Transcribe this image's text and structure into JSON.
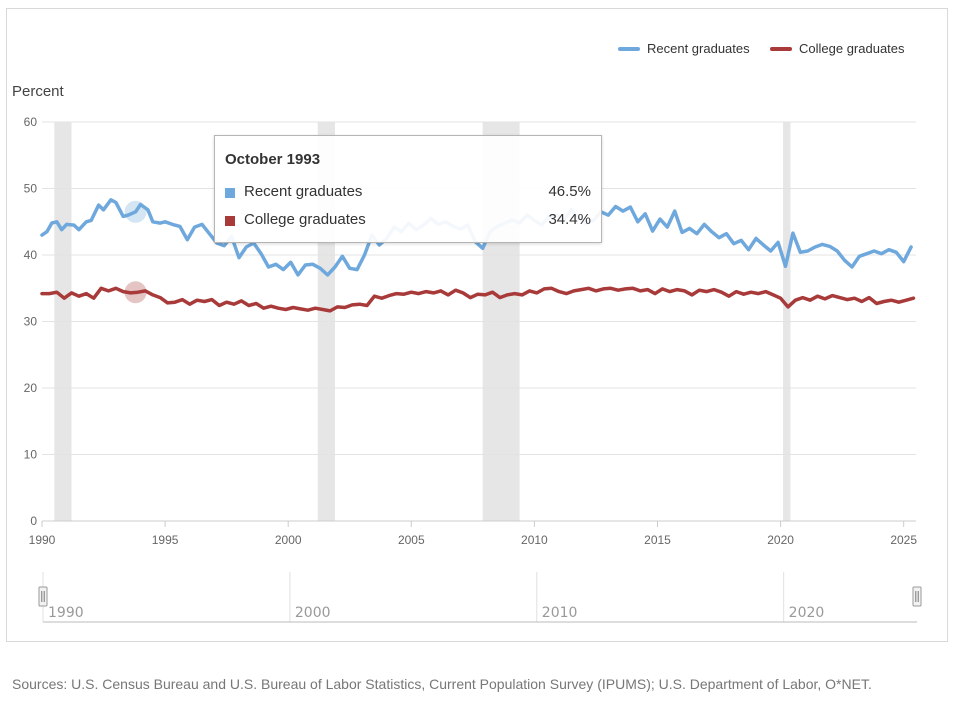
{
  "legend": [
    {
      "name": "Recent graduates",
      "color": "#6fa8dc"
    },
    {
      "name": "College graduates",
      "color": "#a83a3a"
    }
  ],
  "tooltip": {
    "title": "October 1993",
    "rows": [
      {
        "name": "Recent graduates",
        "value": "46.5%",
        "color": "#6fa8dc"
      },
      {
        "name": "College graduates",
        "value": "34.4%",
        "color": "#a83a3a"
      }
    ]
  },
  "navigator": {
    "labels": [
      "1990",
      "2000",
      "2010",
      "2020"
    ],
    "range": [
      1990,
      2025.4
    ]
  },
  "source": "Sources: U.S. Census Bureau and U.S. Bureau of Labor Statistics, Current Population Survey (IPUMS); U.S. Department of Labor, O*NET.",
  "chart_data": {
    "type": "line",
    "title": "",
    "ylabel": "Percent",
    "xlabel": "",
    "xlim": [
      1990,
      2025.5
    ],
    "ylim": [
      0,
      60
    ],
    "x_ticks": [
      "1990",
      "1995",
      "2000",
      "2005",
      "2010",
      "2015",
      "2020",
      "2025"
    ],
    "y_ticks": [
      "0",
      "10",
      "20",
      "30",
      "40",
      "50",
      "60"
    ],
    "grid": "horizontal",
    "legend_position": "top-right",
    "recessions": [
      [
        1990.5,
        1991.2
      ],
      [
        2001.2,
        2001.9
      ],
      [
        2007.9,
        2009.4
      ],
      [
        2020.1,
        2020.4
      ]
    ],
    "highlight_x": 1993.8,
    "series": [
      {
        "name": "Recent graduates",
        "color": "#6fa8dc",
        "x": [
          1990.0,
          1990.2,
          1990.4,
          1990.6,
          1990.8,
          1991.0,
          1991.3,
          1991.5,
          1991.8,
          1992.0,
          1992.3,
          1992.5,
          1992.8,
          1993.0,
          1993.3,
          1993.5,
          1993.8,
          1994.0,
          1994.3,
          1994.5,
          1994.8,
          1995.0,
          1995.3,
          1995.6,
          1995.9,
          1996.2,
          1996.5,
          1996.8,
          1997.1,
          1997.4,
          1997.7,
          1998.0,
          1998.3,
          1998.6,
          1998.9,
          1999.2,
          1999.5,
          1999.8,
          2000.1,
          2000.4,
          2000.7,
          2001.0,
          2001.3,
          2001.6,
          2001.9,
          2002.2,
          2002.5,
          2002.8,
          2003.1,
          2003.4,
          2003.7,
          2004.0,
          2004.3,
          2004.6,
          2004.9,
          2005.2,
          2005.5,
          2005.8,
          2006.1,
          2006.4,
          2006.7,
          2007.0,
          2007.3,
          2007.6,
          2007.9,
          2008.2,
          2008.5,
          2008.8,
          2009.1,
          2009.4,
          2009.7,
          2010.0,
          2010.3,
          2010.6,
          2010.9,
          2011.2,
          2011.5,
          2011.8,
          2012.1,
          2012.4,
          2012.7,
          2013.0,
          2013.3,
          2013.6,
          2013.9,
          2014.2,
          2014.5,
          2014.8,
          2015.1,
          2015.4,
          2015.7,
          2016.0,
          2016.3,
          2016.6,
          2016.9,
          2017.2,
          2017.5,
          2017.8,
          2018.1,
          2018.4,
          2018.7,
          2019.0,
          2019.3,
          2019.6,
          2019.9,
          2020.2,
          2020.5,
          2020.8,
          2021.1,
          2021.4,
          2021.7,
          2022.0,
          2022.3,
          2022.6,
          2022.9,
          2023.2,
          2023.5,
          2023.8,
          2024.1,
          2024.4,
          2024.7,
          2025.0,
          2025.3
        ],
        "values": [
          43.0,
          43.5,
          44.8,
          45.0,
          43.8,
          44.6,
          44.5,
          43.8,
          45.0,
          45.2,
          47.5,
          46.8,
          48.3,
          47.9,
          45.8,
          46.0,
          46.5,
          47.6,
          46.8,
          45.0,
          44.8,
          45.0,
          44.6,
          44.3,
          42.3,
          44.2,
          44.6,
          43.2,
          41.8,
          41.4,
          42.8,
          39.6,
          41.2,
          41.8,
          40.2,
          38.2,
          38.6,
          37.8,
          38.9,
          37.0,
          38.5,
          38.6,
          38.0,
          37.0,
          38.2,
          39.8,
          38.0,
          37.8,
          40.0,
          43.0,
          41.5,
          42.5,
          44.2,
          43.5,
          44.8,
          43.8,
          44.5,
          45.5,
          44.6,
          45.0,
          44.3,
          43.9,
          44.5,
          42.0,
          41.0,
          43.5,
          44.3,
          44.8,
          45.3,
          44.8,
          46.0,
          45.2,
          44.5,
          45.8,
          46.0,
          45.2,
          46.8,
          45.5,
          44.8,
          45.2,
          46.5,
          46.0,
          47.3,
          46.6,
          47.2,
          45.0,
          46.2,
          43.6,
          45.4,
          44.2,
          46.6,
          43.4,
          44.0,
          43.2,
          44.6,
          43.5,
          42.6,
          43.2,
          41.7,
          42.2,
          40.8,
          42.5,
          41.5,
          40.6,
          41.9,
          38.3,
          43.3,
          40.4,
          40.6,
          41.2,
          41.6,
          41.3,
          40.6,
          39.2,
          38.2,
          39.8,
          40.2,
          40.6,
          40.2,
          40.8,
          40.4,
          39.0,
          41.2
        ]
      },
      {
        "name": "College graduates",
        "color": "#a83a3a",
        "x": [
          1990.0,
          1990.3,
          1990.6,
          1990.9,
          1991.2,
          1991.5,
          1991.8,
          1992.1,
          1992.4,
          1992.7,
          1993.0,
          1993.3,
          1993.6,
          1993.9,
          1994.2,
          1994.5,
          1994.8,
          1995.1,
          1995.4,
          1995.7,
          1996.0,
          1996.3,
          1996.6,
          1996.9,
          1997.2,
          1997.5,
          1997.8,
          1998.1,
          1998.4,
          1998.7,
          1999.0,
          1999.3,
          1999.6,
          1999.9,
          2000.2,
          2000.5,
          2000.8,
          2001.1,
          2001.4,
          2001.7,
          2002.0,
          2002.3,
          2002.6,
          2002.9,
          2003.2,
          2003.5,
          2003.8,
          2004.1,
          2004.4,
          2004.7,
          2005.0,
          2005.3,
          2005.6,
          2005.9,
          2006.2,
          2006.5,
          2006.8,
          2007.1,
          2007.4,
          2007.7,
          2008.0,
          2008.3,
          2008.6,
          2008.9,
          2009.2,
          2009.5,
          2009.8,
          2010.1,
          2010.4,
          2010.7,
          2011.0,
          2011.3,
          2011.6,
          2011.9,
          2012.2,
          2012.5,
          2012.8,
          2013.1,
          2013.4,
          2013.7,
          2014.0,
          2014.3,
          2014.6,
          2014.9,
          2015.2,
          2015.5,
          2015.8,
          2016.1,
          2016.4,
          2016.7,
          2017.0,
          2017.3,
          2017.6,
          2017.9,
          2018.2,
          2018.5,
          2018.8,
          2019.1,
          2019.4,
          2019.7,
          2020.0,
          2020.3,
          2020.6,
          2020.9,
          2021.2,
          2021.5,
          2021.8,
          2022.1,
          2022.4,
          2022.7,
          2023.0,
          2023.3,
          2023.6,
          2023.9,
          2024.2,
          2024.5,
          2024.8,
          2025.1,
          2025.4
        ],
        "values": [
          34.2,
          34.2,
          34.4,
          33.5,
          34.3,
          33.8,
          34.2,
          33.5,
          35.0,
          34.6,
          35.0,
          34.5,
          34.3,
          34.4,
          34.6,
          34.0,
          33.6,
          32.8,
          32.9,
          33.3,
          32.6,
          33.2,
          33.0,
          33.3,
          32.4,
          32.9,
          32.6,
          33.1,
          32.4,
          32.7,
          32.0,
          32.3,
          32.0,
          31.8,
          32.1,
          31.9,
          31.7,
          32.0,
          31.8,
          31.6,
          32.2,
          32.1,
          32.5,
          32.6,
          32.4,
          33.8,
          33.5,
          33.9,
          34.2,
          34.1,
          34.4,
          34.2,
          34.5,
          34.3,
          34.6,
          34.0,
          34.7,
          34.3,
          33.6,
          34.1,
          34.0,
          34.4,
          33.6,
          34.0,
          34.2,
          34.0,
          34.6,
          34.3,
          34.9,
          35.0,
          34.5,
          34.2,
          34.6,
          34.8,
          35.0,
          34.6,
          34.9,
          35.0,
          34.7,
          34.9,
          35.0,
          34.6,
          34.8,
          34.2,
          34.9,
          34.5,
          34.8,
          34.6,
          34.0,
          34.7,
          34.5,
          34.8,
          34.4,
          33.8,
          34.5,
          34.1,
          34.4,
          34.2,
          34.5,
          34.0,
          33.5,
          32.2,
          33.2,
          33.6,
          33.2,
          33.8,
          33.4,
          33.9,
          33.6,
          33.3,
          33.5,
          33.0,
          33.6,
          32.7,
          33.0,
          33.2,
          32.9,
          33.2,
          33.5
        ]
      }
    ]
  }
}
